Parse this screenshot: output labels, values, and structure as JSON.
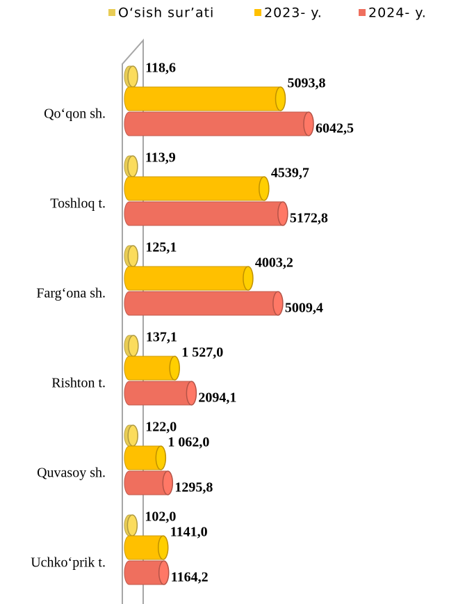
{
  "chart_data": {
    "type": "bar",
    "orientation": "horizontal",
    "categories": [
      "Qo‘qon sh.",
      "Toshloq t.",
      "Farg‘ona sh.",
      "Rishton t.",
      "Quvasoy sh.",
      "Uchko‘prik t."
    ],
    "series": [
      {
        "name": "O‘sish sur’ati",
        "color": "#e8cc55",
        "values": [
          118.6,
          113.9,
          125.1,
          137.1,
          122.0,
          102.0
        ],
        "value_labels": [
          "118,6",
          "113,9",
          "125,1",
          "137,1",
          "122,0",
          "102,0"
        ]
      },
      {
        "name": "2023- y.",
        "color": "#ffc000",
        "values": [
          5093.8,
          4539.7,
          4003.2,
          1527.0,
          1062.0,
          1141.0
        ],
        "value_labels": [
          "5093,8",
          "4539,7",
          "4003,2",
          "1 527,0",
          "1 062,0",
          "1141,0"
        ]
      },
      {
        "name": "2024- y.",
        "color": "#ef6f5e",
        "values": [
          6042.5,
          5172.8,
          5009.4,
          2094.1,
          1295.8,
          1164.2
        ],
        "value_labels": [
          "6042,5",
          "5172,8",
          "5009,4",
          "2094,1",
          "1295,8",
          "1164,2"
        ]
      }
    ],
    "legend": "top"
  }
}
